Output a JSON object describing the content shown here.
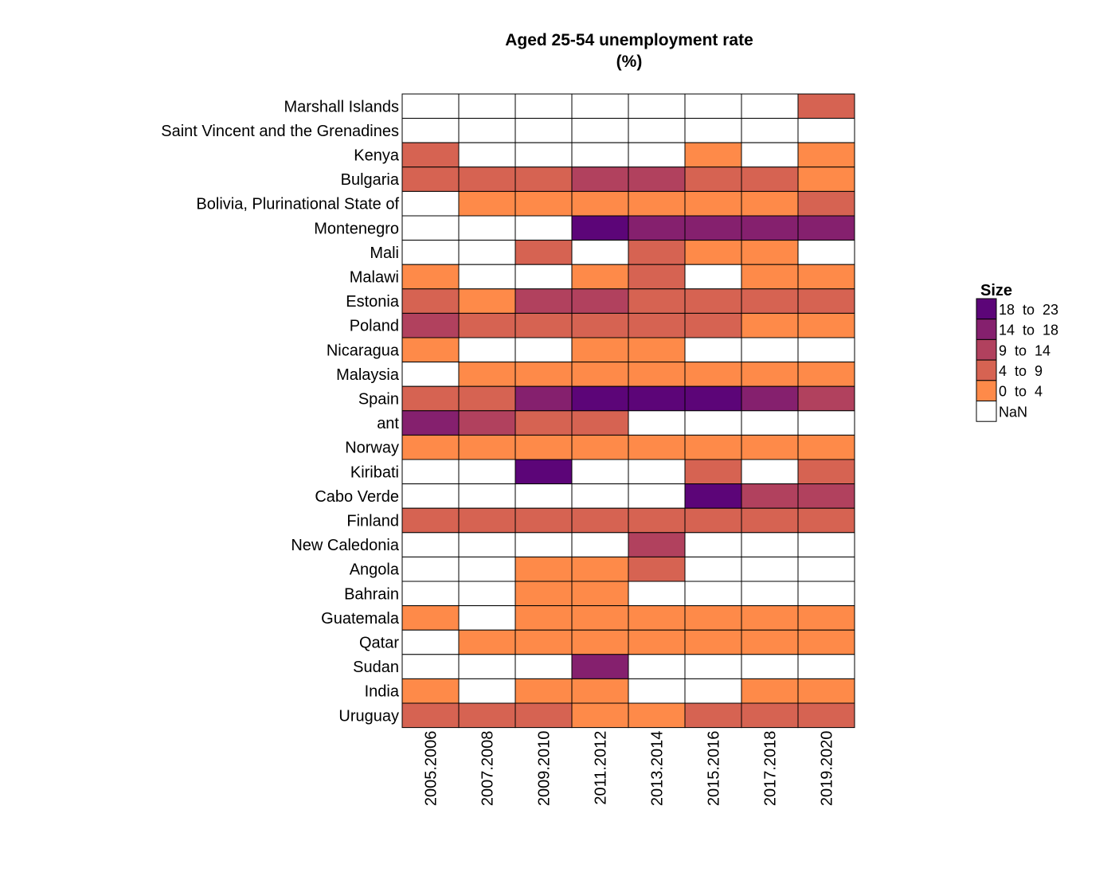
{
  "chart_data": {
    "type": "heatmap",
    "title": "Aged 25-54 unemployment rate",
    "subtitle": "(%)",
    "columns": [
      "2005.2006",
      "2007.2008",
      "2009.2010",
      "2011.2012",
      "2013.2014",
      "2015.2016",
      "2017.2018",
      "2019.2020"
    ],
    "rows": [
      "Marshall Islands",
      "Saint Vincent and the Grenadines",
      "Kenya",
      "Bulgaria",
      "Bolivia, Plurinational State of",
      "Montenegro",
      "Mali",
      "Malawi",
      "Estonia",
      "Poland",
      "Nicaragua",
      "Malaysia",
      "Spain",
      "ant",
      "Norway",
      "Kiribati",
      "Cabo Verde",
      "Finland",
      "New Caledonia",
      "Angola",
      "Bahrain",
      "Guatemala",
      "Qatar",
      "Sudan",
      "India",
      "Uruguay"
    ],
    "values": [
      [
        null,
        null,
        null,
        null,
        null,
        null,
        null,
        6
      ],
      [
        null,
        null,
        null,
        null,
        null,
        null,
        null,
        null
      ],
      [
        6,
        null,
        null,
        null,
        null,
        2,
        null,
        2
      ],
      [
        6,
        6,
        6,
        11,
        11,
        6,
        6,
        2
      ],
      [
        null,
        2,
        2,
        2,
        2,
        2,
        2,
        6
      ],
      [
        null,
        null,
        null,
        20,
        16,
        16,
        16,
        16
      ],
      [
        null,
        null,
        6,
        null,
        6,
        2,
        2,
        null
      ],
      [
        2,
        null,
        null,
        2,
        6,
        null,
        2,
        2
      ],
      [
        6,
        2,
        11,
        11,
        6,
        6,
        6,
        6
      ],
      [
        11,
        6,
        6,
        6,
        6,
        6,
        2,
        2
      ],
      [
        2,
        null,
        null,
        2,
        2,
        null,
        null,
        null
      ],
      [
        null,
        2,
        2,
        2,
        2,
        2,
        2,
        2
      ],
      [
        6,
        6,
        16,
        20,
        20,
        20,
        16,
        11
      ],
      [
        16,
        11,
        6,
        6,
        null,
        null,
        null,
        null
      ],
      [
        2,
        2,
        2,
        2,
        2,
        2,
        2,
        2
      ],
      [
        null,
        null,
        20,
        null,
        null,
        6,
        null,
        6
      ],
      [
        null,
        null,
        null,
        null,
        null,
        20,
        11,
        11
      ],
      [
        6,
        6,
        6,
        6,
        6,
        6,
        6,
        6
      ],
      [
        null,
        null,
        null,
        null,
        11,
        null,
        null,
        null
      ],
      [
        null,
        null,
        2,
        2,
        6,
        null,
        null,
        null
      ],
      [
        null,
        null,
        2,
        2,
        null,
        null,
        null,
        null
      ],
      [
        2,
        null,
        2,
        2,
        2,
        2,
        2,
        2
      ],
      [
        null,
        2,
        2,
        2,
        2,
        2,
        2,
        2
      ],
      [
        null,
        null,
        null,
        16,
        null,
        null,
        null,
        null
      ],
      [
        2,
        null,
        2,
        2,
        null,
        null,
        2,
        2
      ],
      [
        6,
        6,
        6,
        2,
        2,
        6,
        6,
        6
      ]
    ],
    "legend": {
      "title": "Size",
      "position": "right",
      "bins": [
        {
          "label": "18  to  23",
          "min": 18,
          "max": 23,
          "color": "#5c0578"
        },
        {
          "label": "14  to  18",
          "min": 14,
          "max": 18,
          "color": "#85206e"
        },
        {
          "label": "9  to  14",
          "min": 9,
          "max": 14,
          "color": "#b1415e"
        },
        {
          "label": "4  to  9",
          "min": 4,
          "max": 9,
          "color": "#d66352"
        },
        {
          "label": "0  to  4",
          "min": 0,
          "max": 4,
          "color": "#fe8a49"
        },
        {
          "label": "NaN",
          "min": null,
          "max": null,
          "color": "#ffffff"
        }
      ]
    }
  }
}
